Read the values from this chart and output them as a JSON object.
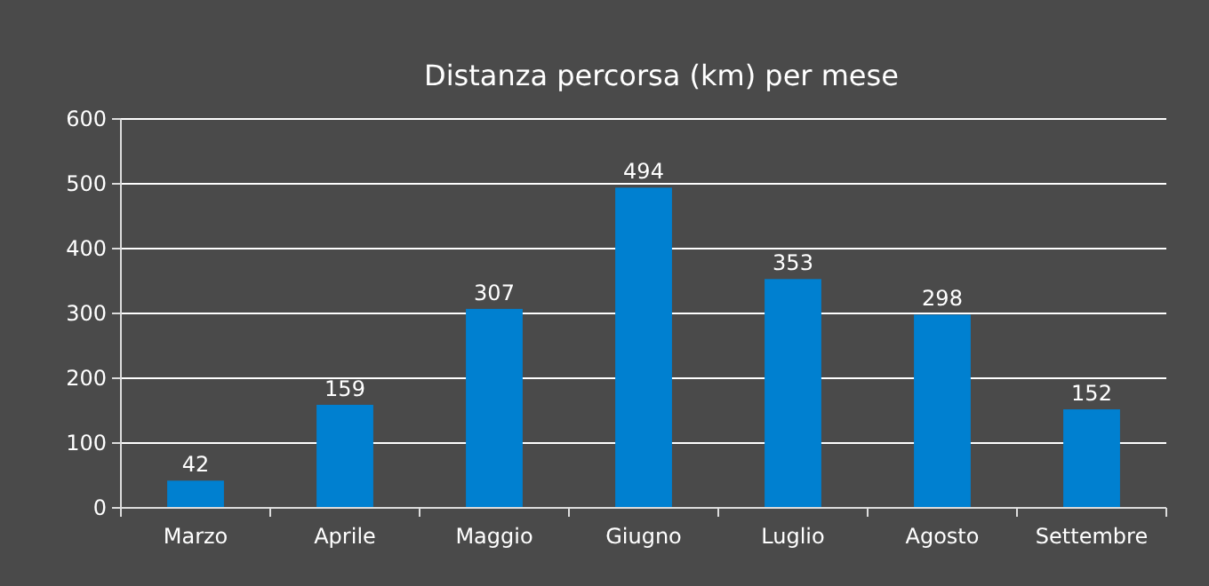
{
  "chart_data": {
    "type": "bar",
    "title": "Distanza percorsa (km) per mese",
    "categories": [
      "Marzo",
      "Aprile",
      "Maggio",
      "Giugno",
      "Luglio",
      "Agosto",
      "Settembre"
    ],
    "values": [
      42,
      159,
      307,
      494,
      353,
      298,
      152
    ],
    "color": "#0080d0",
    "ylim": [
      0,
      600
    ],
    "yticks": [
      0,
      100,
      200,
      300,
      400,
      500,
      600
    ],
    "grid": "y",
    "data_labels": true
  }
}
